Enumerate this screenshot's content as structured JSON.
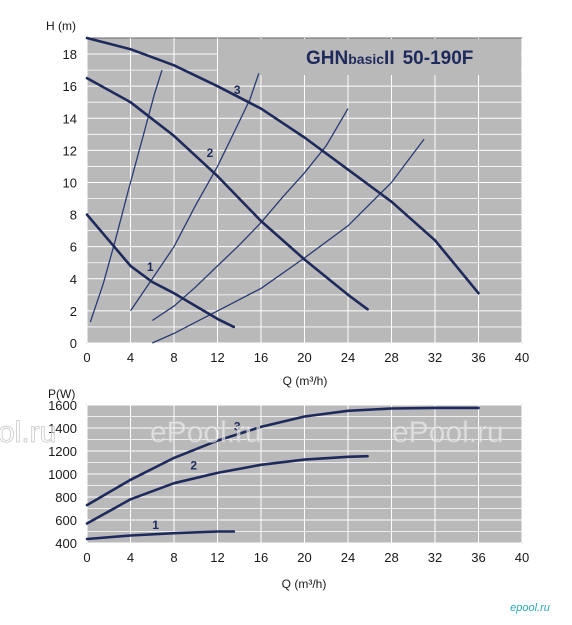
{
  "product": {
    "main": "GHN",
    "sub": "basic",
    "series": "II",
    "model": "50-190F"
  },
  "watermark": {
    "text": "ePool.ru",
    "left_fragment": "ol.ru"
  },
  "brand": "epool.ru",
  "chart_data": [
    {
      "type": "line",
      "ylabel": "H (m)",
      "xlabel": "Q (m³/h)",
      "xlim": [
        0,
        40
      ],
      "ylim": [
        0,
        19
      ],
      "x_ticks": [
        0,
        4,
        8,
        12,
        16,
        20,
        24,
        28,
        32,
        36,
        40
      ],
      "y_ticks": [
        0,
        2,
        4,
        6,
        8,
        10,
        12,
        14,
        16,
        18
      ],
      "grid": true,
      "series": [
        {
          "name": "1",
          "label_at": [
            5.5,
            4.5
          ],
          "points": [
            [
              0,
              8
            ],
            [
              2,
              6.4
            ],
            [
              4,
              4.8
            ],
            [
              6,
              3.8
            ],
            [
              8,
              3.1
            ],
            [
              10,
              2.3
            ],
            [
              12,
              1.5
            ],
            [
              13.5,
              1.0
            ]
          ]
        },
        {
          "name": "2",
          "label_at": [
            11,
            11.6
          ],
          "points": [
            [
              0,
              16.5
            ],
            [
              4,
              15.0
            ],
            [
              8,
              12.9
            ],
            [
              12,
              10.4
            ],
            [
              16,
              7.6
            ],
            [
              20,
              5.2
            ],
            [
              24,
              3.0
            ],
            [
              25.8,
              2.1
            ]
          ]
        },
        {
          "name": "3",
          "label_at": [
            13.5,
            15.5
          ],
          "points": [
            [
              0,
              19.0
            ],
            [
              4,
              18.3
            ],
            [
              8,
              17.3
            ],
            [
              12,
              16.0
            ],
            [
              16,
              14.6
            ],
            [
              20,
              12.8
            ],
            [
              24,
              10.8
            ],
            [
              28,
              8.8
            ],
            [
              32,
              6.4
            ],
            [
              36,
              3.1
            ]
          ]
        }
      ],
      "system_curves": [
        [
          [
            0.3,
            1.3
          ],
          [
            1.5,
            3.7
          ],
          [
            2.6,
            6.4
          ],
          [
            3.8,
            9.5
          ],
          [
            5.2,
            13.0
          ],
          [
            6.2,
            15.5
          ],
          [
            6.9,
            17.0
          ]
        ],
        [
          [
            4.0,
            2.0
          ],
          [
            6.0,
            4.0
          ],
          [
            8.0,
            6.0
          ],
          [
            10.0,
            8.6
          ],
          [
            12.0,
            11.0
          ],
          [
            14.0,
            13.8
          ],
          [
            15.0,
            15.2
          ],
          [
            15.8,
            16.8
          ]
        ],
        [
          [
            6.0,
            1.4
          ],
          [
            8.0,
            2.3
          ],
          [
            10.0,
            3.5
          ],
          [
            12.0,
            4.8
          ],
          [
            14.0,
            6.1
          ],
          [
            16.0,
            7.5
          ],
          [
            18.0,
            9.1
          ],
          [
            20.0,
            10.6
          ],
          [
            22.0,
            12.3
          ],
          [
            24.0,
            14.6
          ]
        ],
        [
          [
            6.0,
            0.0
          ],
          [
            8.0,
            0.6
          ],
          [
            10.0,
            1.3
          ],
          [
            12.0,
            2.0
          ],
          [
            16.0,
            3.4
          ],
          [
            20.0,
            5.3
          ],
          [
            24.0,
            7.3
          ],
          [
            28.0,
            10.0
          ],
          [
            31.0,
            12.7
          ]
        ]
      ]
    },
    {
      "type": "line",
      "ylabel": "P(W)",
      "xlabel": "Q (m³/h)",
      "xlim": [
        0,
        40
      ],
      "ylim": [
        400,
        1600
      ],
      "x_ticks": [
        0,
        4,
        8,
        12,
        16,
        20,
        24,
        28,
        32,
        36,
        40
      ],
      "y_ticks": [
        400,
        600,
        800,
        1000,
        1200,
        1400,
        1600
      ],
      "grid": true,
      "series": [
        {
          "name": "1",
          "label_at": [
            6,
            520
          ],
          "points": [
            [
              0,
              435
            ],
            [
              4,
              465
            ],
            [
              8,
              485
            ],
            [
              12,
              500
            ],
            [
              13.5,
              500
            ]
          ]
        },
        {
          "name": "2",
          "label_at": [
            9.5,
            1040
          ],
          "points": [
            [
              0,
              570
            ],
            [
              4,
              780
            ],
            [
              8,
              920
            ],
            [
              12,
              1010
            ],
            [
              16,
              1080
            ],
            [
              20,
              1125
            ],
            [
              24,
              1150
            ],
            [
              25.8,
              1155
            ]
          ]
        },
        {
          "name": "3",
          "label_at": [
            13.5,
            1380
          ],
          "points": [
            [
              0,
              730
            ],
            [
              4,
              950
            ],
            [
              8,
              1140
            ],
            [
              12,
              1290
            ],
            [
              16,
              1410
            ],
            [
              20,
              1500
            ],
            [
              24,
              1550
            ],
            [
              28,
              1570
            ],
            [
              32,
              1575
            ],
            [
              36,
              1575
            ]
          ]
        }
      ]
    }
  ]
}
